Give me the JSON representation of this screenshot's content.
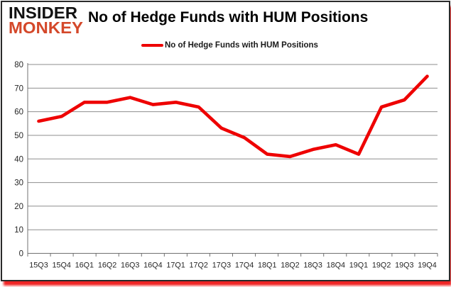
{
  "branding": {
    "logo_line1": "INSIDER",
    "logo_line2": "MONKEY",
    "logo_color_primary": "#121212",
    "logo_color_secondary": "#d4482a"
  },
  "header": {
    "title": "No of Hedge Funds with HUM Positions"
  },
  "legend": {
    "label": "No of Hedge Funds with HUM Positions",
    "marker_color": "#ee0000"
  },
  "chart_data": {
    "type": "line",
    "title": "No of Hedge Funds with HUM Positions",
    "categories": [
      "15Q3",
      "15Q4",
      "16Q1",
      "16Q2",
      "16Q3",
      "16Q4",
      "17Q1",
      "17Q2",
      "17Q3",
      "17Q4",
      "18Q1",
      "18Q2",
      "18Q3",
      "18Q4",
      "19Q1",
      "19Q2",
      "19Q3",
      "19Q4"
    ],
    "series": [
      {
        "name": "No of Hedge Funds with HUM Positions",
        "color": "#ee0000",
        "values": [
          56,
          58,
          64,
          64,
          66,
          63,
          64,
          62,
          53,
          49,
          42,
          41,
          44,
          46,
          42,
          62,
          65,
          75
        ]
      }
    ],
    "xlabel": "",
    "ylabel": "",
    "ylim": [
      0,
      80
    ],
    "yticks": [
      0,
      10,
      20,
      30,
      40,
      50,
      60,
      70,
      80
    ],
    "grid": true,
    "legend_position": "top-center",
    "gridline_color": "#8e8e8e",
    "axis_color": "#707070",
    "tick_label_color": "#262626"
  }
}
